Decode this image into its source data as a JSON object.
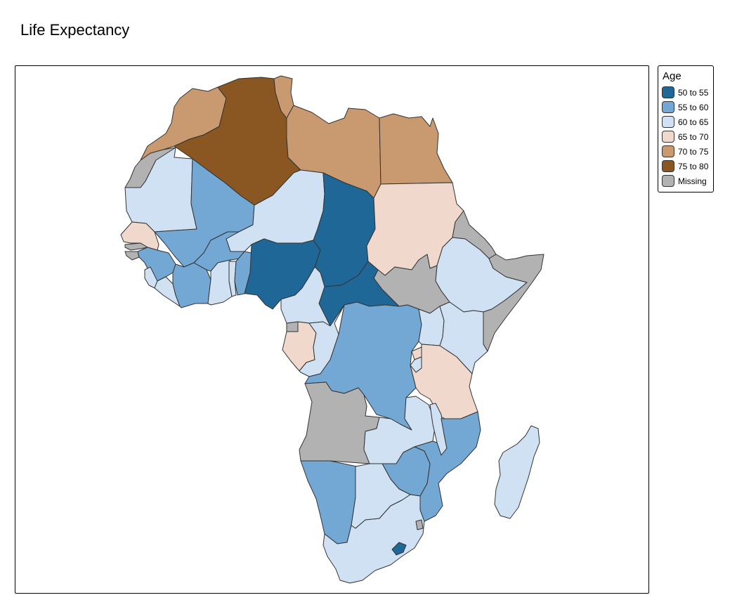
{
  "map": {
    "title": "Life Expectancy",
    "legend": {
      "title": "Age",
      "classes": [
        {
          "label": "50 to 55",
          "color": "#1f6797"
        },
        {
          "label": "55 to 60",
          "color": "#74a8d4"
        },
        {
          "label": "60 to 65",
          "color": "#cfe1f3"
        },
        {
          "label": "65 to 70",
          "color": "#f0d8cc"
        },
        {
          "label": "70 to 75",
          "color": "#c9996f"
        },
        {
          "label": "75 to 80",
          "color": "#8a5722"
        },
        {
          "label": "Missing",
          "color": "#b2b2b2"
        }
      ]
    },
    "regions": [
      {
        "id": "western-sahara",
        "class": "Missing"
      },
      {
        "id": "morocco",
        "class": "70 to 75"
      },
      {
        "id": "algeria",
        "class": "75 to 80"
      },
      {
        "id": "tunisia",
        "class": "70 to 75"
      },
      {
        "id": "libya",
        "class": "70 to 75"
      },
      {
        "id": "egypt",
        "class": "70 to 75"
      },
      {
        "id": "mauritania",
        "class": "60 to 65"
      },
      {
        "id": "mali",
        "class": "55 to 60"
      },
      {
        "id": "niger",
        "class": "60 to 65"
      },
      {
        "id": "chad",
        "class": "50 to 55"
      },
      {
        "id": "sudan",
        "class": "65 to 70"
      },
      {
        "id": "eritrea",
        "class": "Missing"
      },
      {
        "id": "senegal",
        "class": "65 to 70"
      },
      {
        "id": "gambia",
        "class": "Missing"
      },
      {
        "id": "guinea-bissau",
        "class": "Missing"
      },
      {
        "id": "guinea",
        "class": "55 to 60"
      },
      {
        "id": "sierra-leone",
        "class": "60 to 65"
      },
      {
        "id": "liberia",
        "class": "60 to 65"
      },
      {
        "id": "cote-divoire",
        "class": "55 to 60"
      },
      {
        "id": "burkina-faso",
        "class": "55 to 60"
      },
      {
        "id": "ghana",
        "class": "60 to 65"
      },
      {
        "id": "togo",
        "class": "60 to 65"
      },
      {
        "id": "benin",
        "class": "55 to 60"
      },
      {
        "id": "nigeria",
        "class": "50 to 55"
      },
      {
        "id": "cameroon",
        "class": "60 to 65"
      },
      {
        "id": "central-african-republic",
        "class": "50 to 55"
      },
      {
        "id": "south-sudan",
        "class": "Missing"
      },
      {
        "id": "ethiopia",
        "class": "60 to 65"
      },
      {
        "id": "somalia",
        "class": "Missing"
      },
      {
        "id": "kenya",
        "class": "60 to 65"
      },
      {
        "id": "uganda",
        "class": "60 to 65"
      },
      {
        "id": "rwanda",
        "class": "65 to 70"
      },
      {
        "id": "burundi",
        "class": "60 to 65"
      },
      {
        "id": "tanzania",
        "class": "65 to 70"
      },
      {
        "id": "equatorial-guinea",
        "class": "Missing"
      },
      {
        "id": "gabon",
        "class": "65 to 70"
      },
      {
        "id": "congo",
        "class": "60 to 65"
      },
      {
        "id": "dr-congo",
        "class": "55 to 60"
      },
      {
        "id": "angola",
        "class": "Missing"
      },
      {
        "id": "zambia",
        "class": "60 to 65"
      },
      {
        "id": "malawi",
        "class": "60 to 65"
      },
      {
        "id": "mozambique",
        "class": "55 to 60"
      },
      {
        "id": "zimbabwe",
        "class": "55 to 60"
      },
      {
        "id": "namibia",
        "class": "55 to 60"
      },
      {
        "id": "botswana",
        "class": "60 to 65"
      },
      {
        "id": "south-africa",
        "class": "60 to 65"
      },
      {
        "id": "eswatini",
        "class": "Missing"
      },
      {
        "id": "lesotho",
        "class": "50 to 55"
      },
      {
        "id": "madagascar",
        "class": "60 to 65"
      }
    ]
  }
}
